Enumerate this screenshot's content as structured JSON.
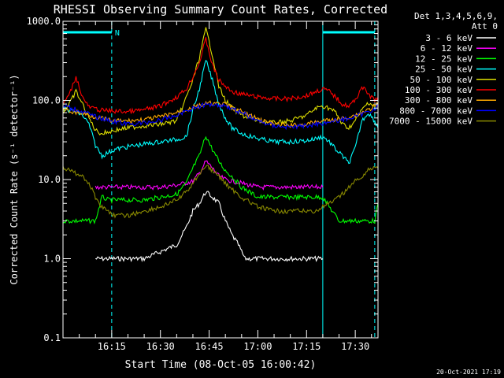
{
  "chart_data": {
    "type": "line",
    "title": "RHESSI Observing Summary Count Rates, Corrected",
    "xlabel": "Start Time (08-Oct-05 16:00:42)",
    "ylabel": "Corrected Count Rate (s⁻¹ detector⁻¹)",
    "y_scale": "log",
    "ylim": [
      0.1,
      1000
    ],
    "y_ticks": [
      {
        "value": 0.1,
        "label": "0.1"
      },
      {
        "value": 1,
        "label": "1.0"
      },
      {
        "value": 10,
        "label": "10.0"
      },
      {
        "value": 100,
        "label": "100.0"
      },
      {
        "value": 1000,
        "label": "1000.0"
      }
    ],
    "xlim_minutes": [
      0,
      97
    ],
    "x_ticks": [
      {
        "value": 15,
        "label": "16:15"
      },
      {
        "value": 30,
        "label": "16:30"
      },
      {
        "value": 45,
        "label": "16:45"
      },
      {
        "value": 60,
        "label": "17:00"
      },
      {
        "value": 75,
        "label": "17:15"
      },
      {
        "value": 90,
        "label": "17:30"
      }
    ],
    "legend_header": [
      "Det 1,3,4,5,6,9,",
      "Att 0"
    ],
    "legend_placement": "right",
    "night_bars": [
      {
        "start": 0,
        "end": 15,
        "label": "N"
      },
      {
        "start": 80,
        "end": 96,
        "label": ""
      }
    ],
    "vertical_lines": [
      {
        "x": 0,
        "style": "solid"
      },
      {
        "x": 15,
        "style": "dashed"
      },
      {
        "x": 80,
        "style": "solid"
      },
      {
        "x": 96,
        "style": "dashed"
      }
    ],
    "series": [
      {
        "name": "3 - 6 keV",
        "color": "#ffffff",
        "x": [
          10,
          14,
          25,
          35,
          38,
          40,
          42,
          44,
          46,
          48,
          50,
          52,
          54,
          56,
          60,
          62,
          80
        ],
        "y": [
          1,
          1,
          1,
          1.5,
          2.5,
          4,
          5,
          7,
          6,
          5,
          3,
          2,
          1.5,
          1,
          1,
          1,
          1
        ]
      },
      {
        "name": "6 - 12 keV",
        "color": "#ff00ff",
        "x": [
          10,
          14,
          20,
          25,
          30,
          35,
          40,
          42,
          44,
          46,
          48,
          50,
          55,
          60,
          65,
          70,
          75,
          80
        ],
        "y": [
          8,
          8,
          8,
          8,
          8,
          8.5,
          9.5,
          12,
          17,
          14,
          11,
          10,
          9,
          8,
          8,
          8,
          8,
          8
        ]
      },
      {
        "name": "12 - 25 keV",
        "color": "#00ff00",
        "x": [
          0,
          2,
          4,
          6,
          8,
          10,
          12,
          14,
          16,
          20,
          25,
          30,
          35,
          38,
          40,
          42,
          44,
          46,
          48,
          50,
          52,
          55,
          60,
          65,
          70,
          75,
          80,
          85,
          88,
          90,
          92,
          94,
          96,
          97
        ],
        "y": [
          3,
          3,
          3,
          3,
          3,
          3,
          6,
          5.5,
          5.5,
          5.5,
          5.5,
          6,
          6.5,
          9,
          14,
          20,
          36,
          24,
          17,
          13,
          11,
          8,
          6,
          6,
          6,
          6,
          6,
          3,
          3,
          3,
          3,
          3,
          3,
          5
        ]
      },
      {
        "name": "25 - 50 keV",
        "color": "#00ffff",
        "x": [
          0,
          2,
          4,
          6,
          8,
          10,
          12,
          14,
          16,
          20,
          25,
          30,
          35,
          38,
          40,
          42,
          44,
          46,
          48,
          50,
          52,
          55,
          60,
          65,
          70,
          75,
          78,
          80,
          82,
          84,
          86,
          88,
          90,
          92,
          94,
          96,
          97
        ],
        "y": [
          78,
          75,
          72,
          65,
          50,
          27,
          20,
          22,
          24,
          26,
          28,
          30,
          32,
          35,
          75,
          140,
          320,
          180,
          90,
          60,
          45,
          38,
          33,
          30,
          30,
          31,
          33,
          35,
          30,
          24,
          20,
          16,
          25,
          55,
          70,
          55,
          45
        ]
      },
      {
        "name": "50 - 100 keV",
        "color": "#dddd00",
        "x": [
          0,
          2,
          4,
          6,
          8,
          10,
          12,
          14,
          16,
          20,
          25,
          30,
          35,
          38,
          40,
          42,
          44,
          46,
          48,
          50,
          52,
          55,
          60,
          65,
          70,
          75,
          78,
          80,
          82,
          84,
          86,
          88,
          90,
          92,
          94,
          96,
          97
        ],
        "y": [
          70,
          90,
          130,
          90,
          60,
          42,
          38,
          40,
          42,
          45,
          48,
          50,
          55,
          110,
          180,
          350,
          800,
          380,
          150,
          100,
          80,
          65,
          55,
          52,
          55,
          65,
          80,
          85,
          80,
          70,
          50,
          45,
          55,
          75,
          95,
          85,
          90
        ]
      },
      {
        "name": "100 - 300 keV",
        "color": "#ff0000",
        "x": [
          0,
          2,
          4,
          6,
          8,
          10,
          12,
          14,
          16,
          20,
          25,
          30,
          35,
          38,
          40,
          42,
          44,
          46,
          48,
          50,
          52,
          55,
          60,
          65,
          70,
          75,
          78,
          80,
          82,
          84,
          86,
          88,
          90,
          92,
          94,
          96,
          97
        ],
        "y": [
          90,
          120,
          200,
          110,
          82,
          78,
          75,
          74,
          73,
          72,
          76,
          85,
          110,
          140,
          200,
          300,
          600,
          280,
          180,
          150,
          130,
          120,
          110,
          105,
          105,
          115,
          130,
          140,
          130,
          110,
          90,
          85,
          100,
          150,
          120,
          100,
          110
        ]
      },
      {
        "name": "300 - 800 keV",
        "color": "#ffaa00",
        "x": [
          0,
          5,
          10,
          15,
          20,
          25,
          30,
          35,
          40,
          45,
          50,
          55,
          60,
          65,
          70,
          75,
          80,
          85,
          90,
          95,
          97
        ],
        "y": [
          75,
          70,
          62,
          55,
          55,
          57,
          62,
          70,
          82,
          92,
          88,
          72,
          58,
          50,
          48,
          50,
          55,
          58,
          65,
          80,
          90
        ]
      },
      {
        "name": "800 - 7000 keV",
        "color": "#0000ff",
        "x": [
          0,
          5,
          10,
          15,
          20,
          25,
          30,
          35,
          40,
          45,
          50,
          55,
          60,
          65,
          70,
          75,
          80,
          85,
          90,
          95,
          97
        ],
        "y": [
          85,
          75,
          62,
          55,
          50,
          52,
          56,
          65,
          80,
          90,
          86,
          70,
          55,
          48,
          46,
          48,
          52,
          56,
          62,
          75,
          85
        ]
      },
      {
        "name": "7000 - 15000 keV",
        "color": "#888800",
        "x": [
          0,
          2,
          4,
          6,
          8,
          10,
          12,
          14,
          16,
          20,
          25,
          30,
          35,
          38,
          40,
          42,
          44,
          46,
          48,
          50,
          52,
          55,
          60,
          65,
          70,
          75,
          78,
          80,
          82,
          84,
          86,
          88,
          90,
          92,
          94,
          96,
          97
        ],
        "y": [
          14,
          13,
          12,
          11,
          9,
          6,
          4.5,
          4,
          3.5,
          3.5,
          4,
          4.5,
          5.5,
          7,
          9,
          12,
          15,
          13,
          11,
          9,
          7.5,
          6,
          4.5,
          4,
          4,
          4,
          4,
          4.5,
          5,
          5.5,
          6.5,
          8,
          9.5,
          11,
          13,
          15,
          14
        ]
      }
    ]
  },
  "footer": {
    "timestamp": "20-Oct-2021 17:19"
  }
}
